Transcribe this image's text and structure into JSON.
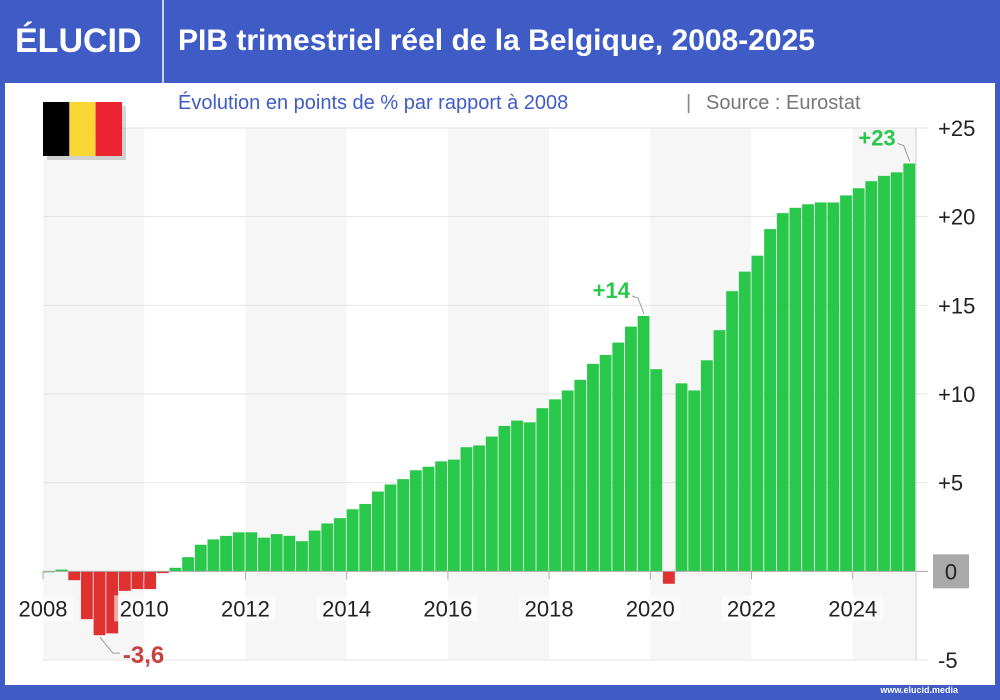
{
  "header": {
    "logo": "ÉLUCID",
    "title": "PIB trimestriel réel de la Belgique, 2008-2025"
  },
  "subtitle": {
    "text": "Évolution en points de % par rapport à 2008",
    "separator": "|",
    "source": "Source : Eurostat"
  },
  "flag": {
    "name": "belgium-flag",
    "colors": [
      "#000000",
      "#f9d835",
      "#ec2330"
    ]
  },
  "footer": {
    "url": "www.elucid.media"
  },
  "colors": {
    "positive": "#2ac84a",
    "negative": "#e03131",
    "brand": "#3f5bc6"
  },
  "chart_data": {
    "type": "bar",
    "start": "2008-Q1",
    "frequency": "quarterly",
    "quarters": [
      "2008Q1",
      "2008Q2",
      "2008Q3",
      "2008Q4",
      "2009Q1",
      "2009Q2",
      "2009Q3",
      "2009Q4",
      "2010Q1",
      "2010Q2",
      "2010Q3",
      "2010Q4",
      "2011Q1",
      "2011Q2",
      "2011Q3",
      "2011Q4",
      "2012Q1",
      "2012Q2",
      "2012Q3",
      "2012Q4",
      "2013Q1",
      "2013Q2",
      "2013Q3",
      "2013Q4",
      "2014Q1",
      "2014Q2",
      "2014Q3",
      "2014Q4",
      "2015Q1",
      "2015Q2",
      "2015Q3",
      "2015Q4",
      "2016Q1",
      "2016Q2",
      "2016Q3",
      "2016Q4",
      "2017Q1",
      "2017Q2",
      "2017Q3",
      "2017Q4",
      "2018Q1",
      "2018Q2",
      "2018Q3",
      "2018Q4",
      "2019Q1",
      "2019Q2",
      "2019Q3",
      "2019Q4",
      "2020Q1",
      "2020Q2",
      "2020Q3",
      "2020Q4",
      "2021Q1",
      "2021Q2",
      "2021Q3",
      "2021Q4",
      "2022Q1",
      "2022Q2",
      "2022Q3",
      "2022Q4",
      "2023Q1",
      "2023Q2",
      "2023Q3",
      "2023Q4",
      "2024Q1",
      "2024Q2",
      "2024Q3",
      "2024Q4",
      "2025Q1"
    ],
    "values": [
      0,
      0.1,
      -0.5,
      -2.7,
      -3.6,
      -3.5,
      -1.1,
      -1.0,
      -1.0,
      -0.1,
      0.2,
      0.8,
      1.5,
      1.8,
      2.0,
      2.2,
      2.2,
      1.9,
      2.1,
      2.0,
      1.7,
      2.3,
      2.7,
      3.0,
      3.5,
      3.8,
      4.5,
      4.9,
      5.2,
      5.7,
      5.9,
      6.2,
      6.3,
      7.0,
      7.1,
      7.6,
      8.2,
      8.5,
      8.4,
      9.2,
      9.7,
      10.2,
      10.8,
      11.7,
      12.2,
      12.9,
      13.8,
      14.4,
      11.4,
      -0.7,
      10.6,
      10.2,
      11.9,
      13.6,
      15.8,
      16.9,
      17.8,
      19.3,
      20.2,
      20.5,
      20.7,
      20.8,
      20.8,
      21.2,
      21.6,
      22.0,
      22.3,
      22.5,
      23.0
    ],
    "x_ticks": [
      "2008",
      "2010",
      "2012",
      "2014",
      "2016",
      "2018",
      "2020",
      "2022",
      "2024"
    ],
    "y_ticks": [
      "+25",
      "+20",
      "+15",
      "+10",
      "+5",
      "0",
      "-5"
    ],
    "y_tick_values": [
      25,
      20,
      15,
      10,
      5,
      0,
      -5
    ],
    "ylim": [
      -5,
      25
    ],
    "grid": true,
    "annotations": [
      {
        "text": "-3,6",
        "quarter": "2009Q1",
        "value": -3.6
      },
      {
        "text": "+14",
        "quarter": "2019Q4",
        "value": 14.4
      },
      {
        "text": "+23",
        "quarter": "2025Q1",
        "value": 23.0
      }
    ]
  }
}
